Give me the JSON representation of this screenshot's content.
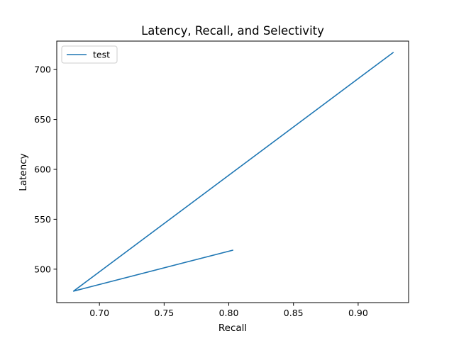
{
  "chart_data": {
    "type": "line",
    "title": "Latency, Recall, and Selectivity",
    "xlabel": "Recall",
    "ylabel": "Latency",
    "xlim": [
      0.667,
      0.939
    ],
    "ylim": [
      466.5,
      728.5
    ],
    "xticks": [
      0.7,
      0.75,
      0.8,
      0.85,
      0.9
    ],
    "xtick_labels": [
      "0.70",
      "0.75",
      "0.80",
      "0.85",
      "0.90"
    ],
    "yticks": [
      500,
      550,
      600,
      650,
      700
    ],
    "ytick_labels": [
      "500",
      "550",
      "600",
      "650",
      "700"
    ],
    "grid": false,
    "legend_position": "top-left",
    "series": [
      {
        "name": "test",
        "color": "#1f77b4",
        "x": [
          0.803,
          0.68,
          0.927
        ],
        "y": [
          519,
          478,
          717
        ]
      }
    ]
  }
}
